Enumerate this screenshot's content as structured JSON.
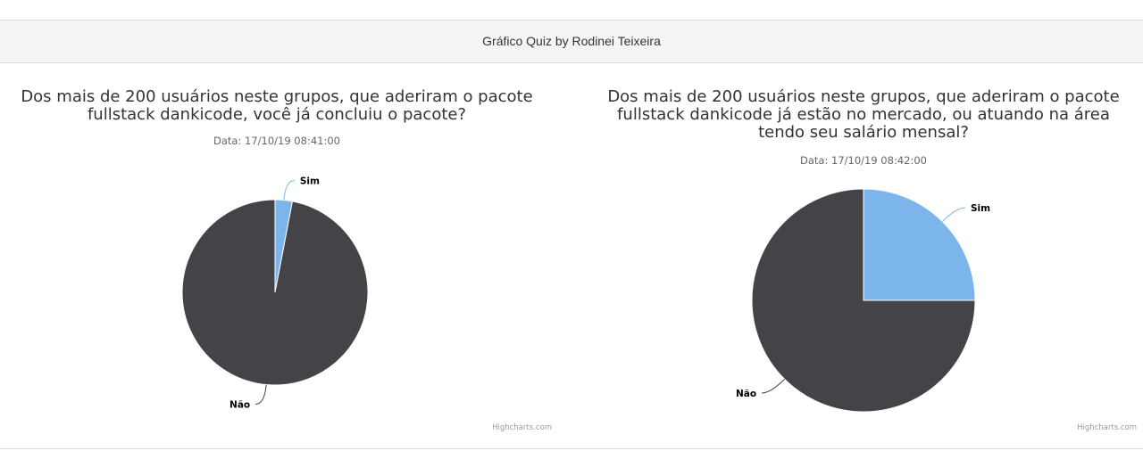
{
  "header": {
    "title": "Gráfico Quiz by Rodinei Teixeira"
  },
  "colors": {
    "sim": "#7cb5ec",
    "nao": "#434348",
    "connector": "#000000"
  },
  "chart_data": [
    {
      "type": "pie",
      "title": [
        "Dos mais de 200 usuários neste grupos, que aderiram o pacote",
        "fullstack dankicode, você já concluiu o pacote?"
      ],
      "subtitle": "Data: 17/10/19 08:41:00",
      "credits": "Highcharts.com",
      "slices": [
        {
          "name": "Sim",
          "value": 3,
          "color": "#7cb5ec"
        },
        {
          "name": "Não",
          "value": 97,
          "color": "#434348"
        }
      ]
    },
    {
      "type": "pie",
      "title": [
        "Dos mais de 200 usuários neste grupos, que aderiram o pacote",
        "fullstack dankicode já estão no mercado, ou atuando na área",
        "tendo seu salário mensal?"
      ],
      "subtitle": "Data: 17/10/19 08:42:00",
      "credits": "Highcharts.com",
      "slices": [
        {
          "name": "Sim",
          "value": 25,
          "color": "#7cb5ec"
        },
        {
          "name": "Não",
          "value": 75,
          "color": "#434348"
        }
      ]
    }
  ]
}
